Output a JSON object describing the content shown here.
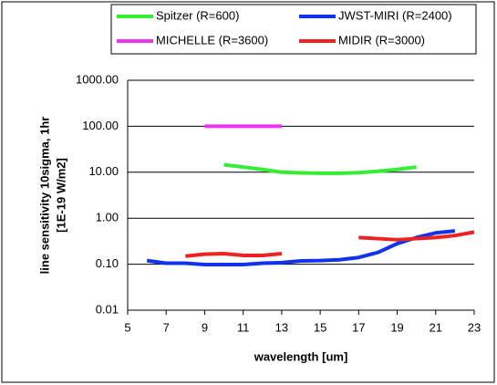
{
  "chart_data": {
    "type": "line",
    "xlabel": "wavelength [um]",
    "ylabel": [
      "line sensitivity 10sigma, 1hr",
      "[1E-19 W/m2]"
    ],
    "xlim": [
      5,
      23
    ],
    "xticks": [
      5,
      7,
      9,
      11,
      13,
      15,
      17,
      19,
      21,
      23
    ],
    "ylim": [
      0.01,
      1000
    ],
    "log_y": true,
    "grid": true,
    "yticks": [
      {
        "value": 1000,
        "label": "1000.00"
      },
      {
        "value": 100,
        "label": "100.00"
      },
      {
        "value": 10,
        "label": "10.00"
      },
      {
        "value": 1,
        "label": "1.00"
      },
      {
        "value": 0.1,
        "label": "0.10"
      },
      0.01
    ],
    "series": [
      {
        "name": "Spitzer (R=600)",
        "color": "#33ee33",
        "x": [
          10,
          11,
          12,
          13,
          14,
          15,
          16,
          17,
          18,
          19,
          20
        ],
        "values": [
          14.5,
          13,
          11.5,
          10,
          9.7,
          9.5,
          9.5,
          9.8,
          10.5,
          11.5,
          13
        ]
      },
      {
        "name": "JWST-MIRI (R=2400)",
        "color": "#1133ee",
        "x": [
          6,
          7,
          8,
          9,
          10,
          11,
          12,
          13,
          14,
          15,
          16,
          17,
          18,
          19,
          20,
          21,
          22
        ],
        "values": [
          0.12,
          0.105,
          0.105,
          0.098,
          0.098,
          0.098,
          0.105,
          0.108,
          0.118,
          0.12,
          0.125,
          0.14,
          0.18,
          0.28,
          0.38,
          0.48,
          0.53
        ]
      },
      {
        "name": "MICHELLE (R=3600)",
        "color": "#ee33ee",
        "x": [
          9,
          10,
          11,
          12,
          13
        ],
        "values": [
          100,
          100,
          100,
          100,
          100
        ]
      },
      {
        "name": "MIDIR (R=3000)",
        "color": "#ee2222",
        "x": [
          8,
          9,
          10,
          11,
          12,
          13,
          14,
          15,
          16,
          17,
          18,
          19,
          20,
          21,
          22,
          23
        ],
        "values": [
          0.15,
          0.165,
          0.17,
          0.155,
          0.155,
          0.17,
          null,
          null,
          null,
          0.38,
          0.36,
          0.34,
          0.36,
          0.38,
          0.42,
          0.5
        ]
      }
    ]
  }
}
